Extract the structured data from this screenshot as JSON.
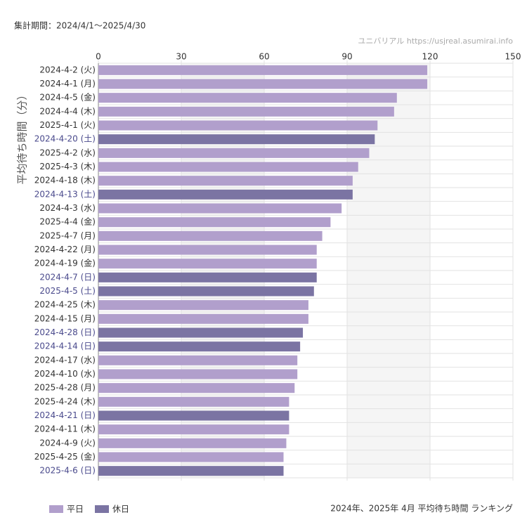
{
  "period": "集計期間：2024/4/1～2025/4/30",
  "watermark": "ユニバリアル  https://usjreal.asumirai.info",
  "footer": "2024年、2025年 4月 平均待ち時間 ランキング",
  "chart_data": {
    "type": "bar",
    "orientation": "horizontal",
    "stacked": true,
    "y_label": "平均待ち時間（分）",
    "categories": [
      "2024-4-2 (火)",
      "2024-4-1 (月)",
      "2024-4-5 (金)",
      "2024-4-4 (木)",
      "2025-4-1 (火)",
      "2024-4-20 (土)",
      "2025-4-2 (水)",
      "2025-4-3 (木)",
      "2024-4-18 (木)",
      "2024-4-13 (土)",
      "2024-4-3 (水)",
      "2025-4-4 (金)",
      "2025-4-7 (月)",
      "2024-4-22 (月)",
      "2024-4-19 (金)",
      "2024-4-7 (日)",
      "2025-4-5 (土)",
      "2024-4-25 (木)",
      "2024-4-15 (月)",
      "2024-4-28 (日)",
      "2024-4-14 (日)",
      "2024-4-17 (水)",
      "2024-4-10 (水)",
      "2025-4-28 (月)",
      "2025-4-24 (木)",
      "2024-4-21 (日)",
      "2024-4-11 (木)",
      "2024-4-9 (火)",
      "2025-4-25 (金)",
      "2025-4-6 (日)"
    ],
    "series": [
      {
        "name": "平日",
        "color": "#b19fcc",
        "label_color": "#333333",
        "values": [
          119,
          119,
          108,
          107,
          101,
          null,
          98,
          94,
          92,
          null,
          88,
          84,
          81,
          79,
          79,
          null,
          null,
          76,
          76,
          null,
          null,
          72,
          72,
          71,
          69,
          null,
          69,
          68,
          67,
          null
        ]
      },
      {
        "name": "休日",
        "color": "#7b74a3",
        "label_color": "#4a4a8c",
        "values": [
          null,
          null,
          null,
          null,
          null,
          100,
          null,
          null,
          null,
          92,
          null,
          null,
          null,
          null,
          null,
          79,
          78,
          null,
          null,
          74,
          73,
          null,
          null,
          null,
          null,
          69,
          null,
          null,
          null,
          67
        ]
      }
    ],
    "xlim": [
      0,
      150
    ],
    "xticks": [
      0,
      30,
      60,
      90,
      120,
      150
    ],
    "grid": true,
    "legend": "bottom-left"
  }
}
